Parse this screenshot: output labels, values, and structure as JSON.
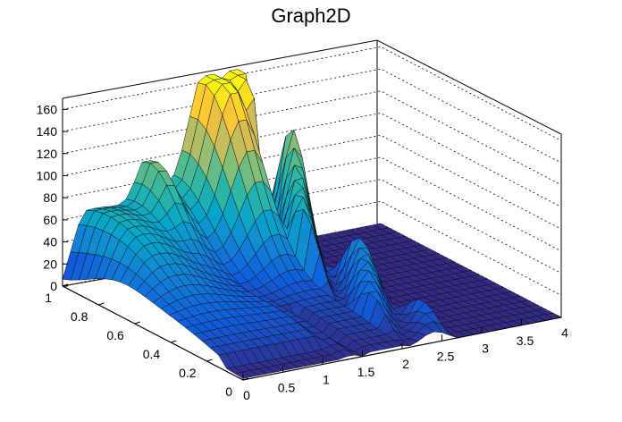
{
  "chart_data": {
    "type": "surface",
    "title": "Graph2D",
    "xlabel": "",
    "ylabel": "",
    "zlabel": "",
    "xlim": [
      0,
      4
    ],
    "ylim": [
      0,
      1
    ],
    "zlim": [
      0,
      170
    ],
    "x_ticks": [
      "0",
      "0.5",
      "1",
      "1.5",
      "2",
      "2.5",
      "3",
      "3.5",
      "4"
    ],
    "y_ticks": [
      "0",
      "0.2",
      "0.4",
      "0.6",
      "0.8",
      "1"
    ],
    "z_ticks": [
      "0",
      "20",
      "40",
      "60",
      "80",
      "100",
      "120",
      "140",
      "160"
    ],
    "grid": true,
    "palette": [
      "#352a87",
      "#0f5cdd",
      "#1481d6",
      "#06a4ca",
      "#2eb7a4",
      "#87bf77",
      "#d1bb59",
      "#fec832",
      "#f9fb0e"
    ],
    "surface_features": [
      {
        "region": "x 0-1, y 0-1",
        "description": "ridge along y=1 edge rising to ~100 near x=1"
      },
      {
        "region": "x 1-2, y 0.8-1",
        "description": "peak plateau ~165 near x=1.6-2"
      },
      {
        "region": "x 2-2.6",
        "description": "spiky values up to ~140 dropping to 0"
      },
      {
        "region": "x 2.6-4",
        "description": "flat zero"
      }
    ]
  }
}
